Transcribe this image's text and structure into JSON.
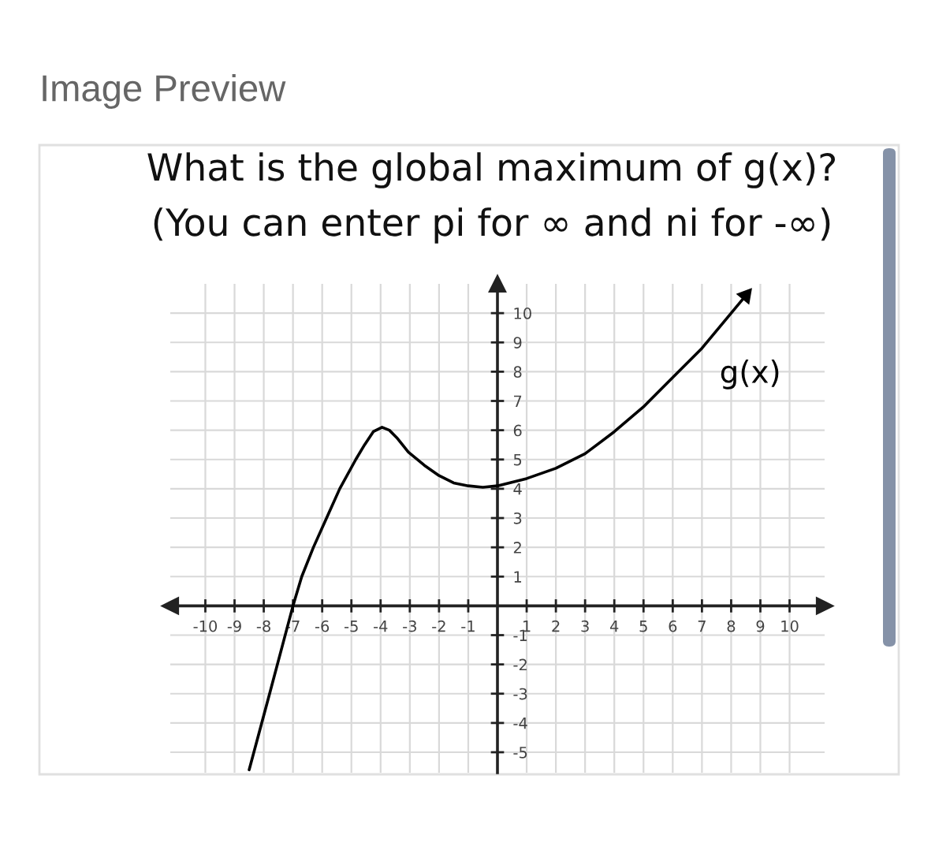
{
  "chart_data": {
    "type": "line",
    "title": "What is the global maximum of g(x)?",
    "subtitle": "(You can enter pi for ∞ and ni for -∞)",
    "annotations": [
      "Image Preview"
    ],
    "x": [
      -8.5,
      -7.8,
      -7,
      -6.7,
      -6.3,
      -5.85,
      -5.4,
      -4.85,
      -4.55,
      -4.25,
      -3.95,
      -3.7,
      -3.45,
      -3.05,
      -2.5,
      -2,
      -1.5,
      -1,
      -0.5,
      0,
      1,
      2,
      3,
      4,
      5,
      6,
      7,
      8,
      8.5
    ],
    "series": [
      {
        "name": "g(x)",
        "color": "#000000",
        "values": [
          -5.6,
          -3,
          0,
          1,
          2,
          3,
          4,
          5,
          5.5,
          5.95,
          6.1,
          6.0,
          5.75,
          5.25,
          4.8,
          4.45,
          4.2,
          4.1,
          4.05,
          4.1,
          4.35,
          4.7,
          5.2,
          5.95,
          6.8,
          7.8,
          8.8,
          10.0,
          10.6
        ]
      }
    ],
    "xlim": [
      -11.2,
      11.2
    ],
    "ylim": [
      -5.7,
      11
    ],
    "xticks": [
      -10,
      -9,
      -8,
      -7,
      -6,
      -5,
      -4,
      -3,
      -2,
      -1,
      1,
      2,
      3,
      4,
      5,
      6,
      7,
      8,
      9,
      10
    ],
    "yticks": [
      -5,
      -4,
      -3,
      -2,
      -1,
      1,
      2,
      3,
      4,
      5,
      6,
      7,
      8,
      9,
      10
    ],
    "grid": true,
    "marker": "none",
    "line_style": "solid"
  }
}
